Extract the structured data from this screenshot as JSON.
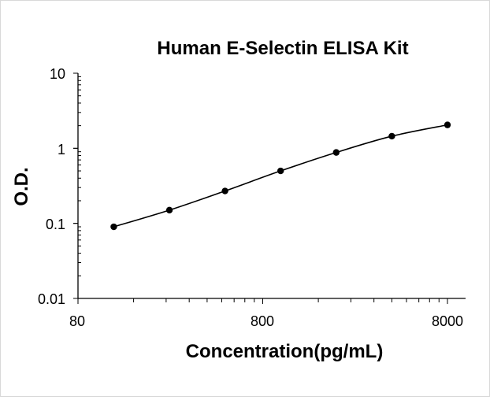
{
  "chart_data": {
    "type": "scatter",
    "title": "Human E-Selectin ELISA Kit",
    "xlabel": "Concentration(pg/mL)",
    "ylabel": "O.D.",
    "x_scale": "log",
    "y_scale": "log",
    "xlim": [
      80,
      8000
    ],
    "ylim": [
      0.01,
      10
    ],
    "x_ticks": [
      "80",
      "800",
      "8000"
    ],
    "y_ticks": [
      "10",
      "1",
      "0.1",
      "0.01"
    ],
    "grid": false,
    "legend": "none",
    "series": [
      {
        "x": [
          125,
          250,
          500,
          1000,
          2000,
          4000,
          8000
        ],
        "y": [
          0.09,
          0.15,
          0.27,
          0.5,
          0.88,
          1.45,
          2.05
        ],
        "marker": "circle",
        "trendline": "smooth curve"
      }
    ],
    "colors": {
      "line": "#000000",
      "marker": "#000000",
      "axis": "#000000"
    }
  }
}
